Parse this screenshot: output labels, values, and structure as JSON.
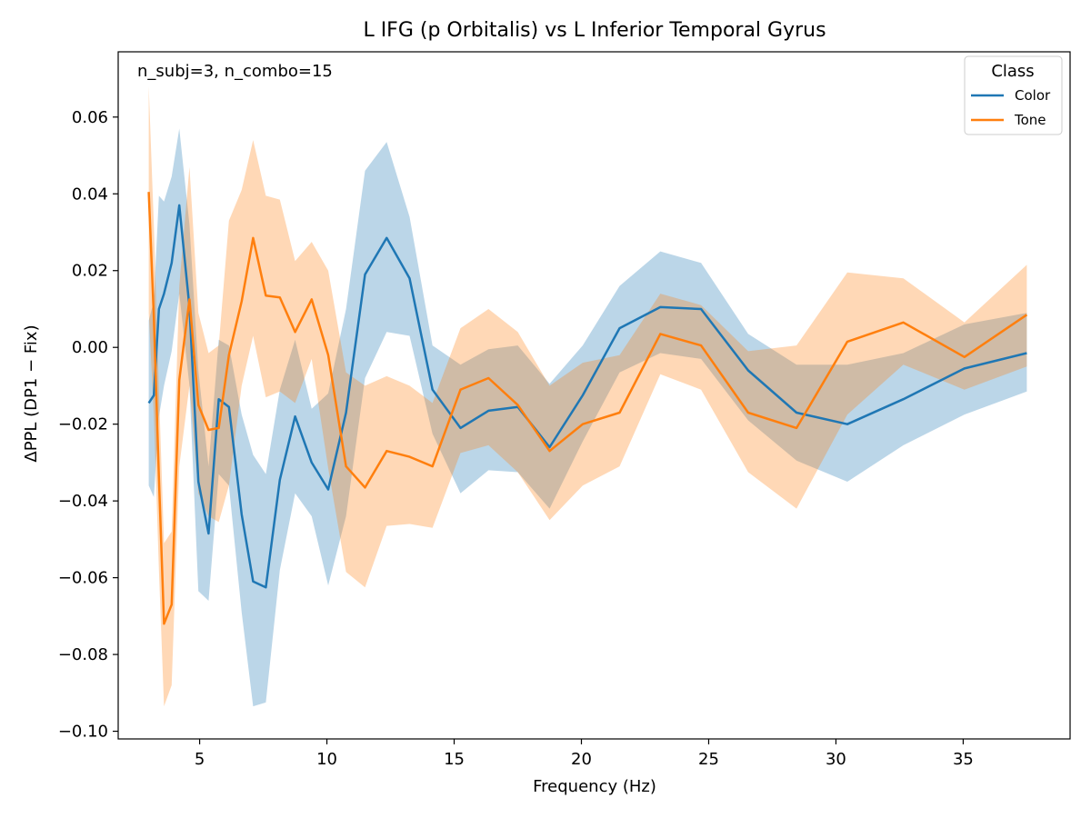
{
  "chart_data": {
    "type": "line",
    "title": "L IFG (p Orbitalis) vs L Inferior Temporal Gyrus",
    "annotation": "n_subj=3, n_combo=15",
    "xlabel": "Frequency (Hz)",
    "ylabel": "ΔPPL (DP1 − Fix)",
    "xlim": [
      1.8,
      39.2
    ],
    "ylim": [
      -0.102,
      0.077
    ],
    "xticks": [
      5,
      10,
      15,
      20,
      25,
      30,
      35
    ],
    "xtick_labels": [
      "5",
      "10",
      "15",
      "20",
      "25",
      "30",
      "35"
    ],
    "yticks": [
      -0.1,
      -0.08,
      -0.06,
      -0.04,
      -0.02,
      0.0,
      0.02,
      0.04,
      0.06
    ],
    "ytick_labels": [
      "−0.10",
      "−0.08",
      "−0.06",
      "−0.04",
      "−0.02",
      "0.00",
      "0.02",
      "0.04",
      "0.06"
    ],
    "grid": false,
    "legend": {
      "title": "Class",
      "position": "top-right"
    },
    "series": [
      {
        "name": "Color",
        "color": "#1f77b4",
        "band_color": "#1f77b4",
        "band_opacity": 0.3,
        "x": [
          3.0,
          3.2,
          3.4,
          3.6,
          3.9,
          4.2,
          4.6,
          4.95,
          5.35,
          5.75,
          6.15,
          6.65,
          7.1,
          7.6,
          8.15,
          8.75,
          9.4,
          10.05,
          10.75,
          11.5,
          12.35,
          13.25,
          14.15,
          15.25,
          16.35,
          17.5,
          18.75,
          20.05,
          21.5,
          23.1,
          24.7,
          26.55,
          28.45,
          30.45,
          32.65,
          35.05,
          37.5
        ],
        "y": [
          -0.0145,
          -0.0125,
          0.01,
          0.014,
          0.022,
          0.037,
          0.0105,
          -0.035,
          -0.0485,
          -0.0135,
          -0.0155,
          -0.0435,
          -0.061,
          -0.0625,
          -0.0345,
          -0.018,
          -0.03,
          -0.037,
          -0.017,
          0.019,
          0.0285,
          0.018,
          -0.011,
          -0.021,
          -0.0165,
          -0.0155,
          -0.026,
          -0.0125,
          0.005,
          0.0105,
          0.01,
          -0.006,
          -0.017,
          -0.02,
          -0.0135,
          -0.0055,
          -0.0015
        ],
        "lower": [
          -0.036,
          -0.039,
          -0.018,
          -0.01,
          -0.001,
          0.014,
          -0.01,
          -0.0635,
          -0.066,
          -0.033,
          -0.036,
          -0.069,
          -0.0935,
          -0.0925,
          -0.058,
          -0.038,
          -0.044,
          -0.062,
          -0.044,
          -0.008,
          0.004,
          0.003,
          -0.0225,
          -0.038,
          -0.032,
          -0.0325,
          -0.042,
          -0.0245,
          -0.0065,
          -0.0015,
          -0.003,
          -0.019,
          -0.0295,
          -0.035,
          -0.0255,
          -0.0175,
          -0.0115
        ],
        "upper": [
          0.007,
          0.012,
          0.0395,
          0.038,
          0.0445,
          0.057,
          0.032,
          -0.006,
          -0.031,
          0.002,
          0.0005,
          -0.0175,
          -0.028,
          -0.033,
          -0.011,
          0.002,
          -0.016,
          -0.012,
          0.01,
          0.046,
          0.0535,
          0.034,
          0.0005,
          -0.0045,
          -0.0005,
          0.0005,
          -0.0095,
          0.0005,
          0.016,
          0.025,
          0.022,
          0.0035,
          -0.0045,
          -0.0045,
          -0.0015,
          0.006,
          0.009
        ]
      },
      {
        "name": "Tone",
        "color": "#ff7f0e",
        "band_color": "#ff7f0e",
        "band_opacity": 0.3,
        "x": [
          3.0,
          3.2,
          3.4,
          3.6,
          3.9,
          4.2,
          4.6,
          4.95,
          5.35,
          5.75,
          6.15,
          6.65,
          7.1,
          7.6,
          8.15,
          8.75,
          9.4,
          10.05,
          10.75,
          11.5,
          12.35,
          13.25,
          14.15,
          15.25,
          16.35,
          17.5,
          18.75,
          20.05,
          21.5,
          23.1,
          24.7,
          26.55,
          28.45,
          30.45,
          32.65,
          35.05,
          37.5
        ],
        "y": [
          0.0405,
          0.008,
          -0.034,
          -0.072,
          -0.067,
          -0.0085,
          0.0125,
          -0.015,
          -0.0215,
          -0.021,
          -0.002,
          0.012,
          0.0285,
          0.0135,
          0.013,
          0.004,
          0.0125,
          -0.002,
          -0.031,
          -0.0365,
          -0.027,
          -0.0285,
          -0.031,
          -0.011,
          -0.008,
          -0.015,
          -0.027,
          -0.02,
          -0.017,
          0.0035,
          0.0005,
          -0.017,
          -0.021,
          0.0015,
          0.0065,
          -0.0025,
          0.0085
        ],
        "lower": [
          0.009,
          -0.0175,
          -0.058,
          -0.0935,
          -0.088,
          -0.031,
          -0.01,
          -0.038,
          -0.044,
          -0.0455,
          -0.036,
          -0.01,
          0.003,
          -0.013,
          -0.0115,
          -0.0145,
          -0.003,
          -0.0315,
          -0.0585,
          -0.0625,
          -0.0465,
          -0.046,
          -0.047,
          -0.0275,
          -0.0255,
          -0.0325,
          -0.045,
          -0.036,
          -0.031,
          -0.007,
          -0.011,
          -0.0325,
          -0.042,
          -0.0175,
          -0.0045,
          -0.011,
          -0.005
        ],
        "upper": [
          0.068,
          0.032,
          -0.011,
          -0.051,
          -0.048,
          0.016,
          0.047,
          0.009,
          -0.0015,
          0.0005,
          0.033,
          0.041,
          0.054,
          0.0395,
          0.0385,
          0.0225,
          0.0275,
          0.02,
          -0.0065,
          -0.01,
          -0.0075,
          -0.01,
          -0.0145,
          0.005,
          0.01,
          0.004,
          -0.01,
          -0.004,
          -0.002,
          0.014,
          0.011,
          -0.001,
          0.0005,
          0.0195,
          0.018,
          0.0065,
          0.0215
        ]
      }
    ]
  }
}
